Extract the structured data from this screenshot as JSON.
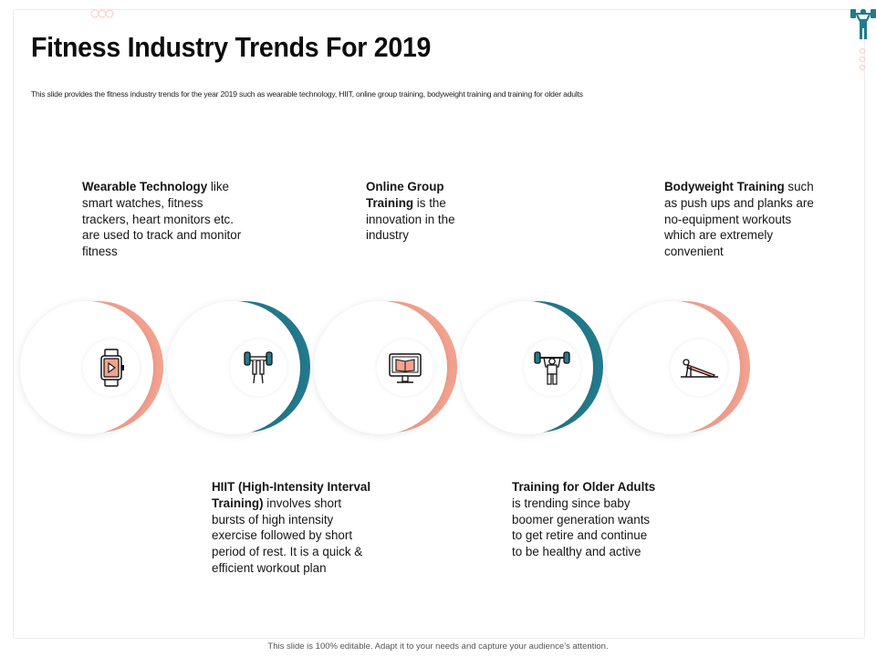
{
  "slide": {
    "title": "Fitness Industry Trends For 2019",
    "subtitle": "This slide provides the fitness industry trends for the year 2019 such as wearable technology, HIIT, online group training, bodyweight training and training for older adults",
    "footer": "This slide is 100% editable. Adapt it to your needs and capture your audience’s attention."
  },
  "colors": {
    "salmon": "#f3a28f",
    "teal": "#237a8c",
    "text": "#161616"
  },
  "trends": [
    {
      "heading": "Wearable Technology",
      "body": " like smart watches, fitness trackers, heart monitors etc. are used to track and monitor fitness",
      "icon": "smartwatch-icon"
    },
    {
      "heading": "HIIT (High-Intensity Interval Training)",
      "body": " involves short bursts of high intensity exercise followed by short period of rest. It is a quick & efficient workout plan",
      "icon": "dumbbell-hand-icon"
    },
    {
      "heading": "Online Group Training",
      "body": " is the innovation in the industry",
      "icon": "online-monitor-icon"
    },
    {
      "heading": "Training for Older Adults",
      "body": " is trending since baby boomer generation wants to get retire and continue to be healthy and active",
      "icon": "weightlifter-icon"
    },
    {
      "heading": "Bodyweight Training",
      "body": " such as push ups and planks are no-equipment workouts which are extremely convenient",
      "icon": "pushup-icon"
    }
  ]
}
